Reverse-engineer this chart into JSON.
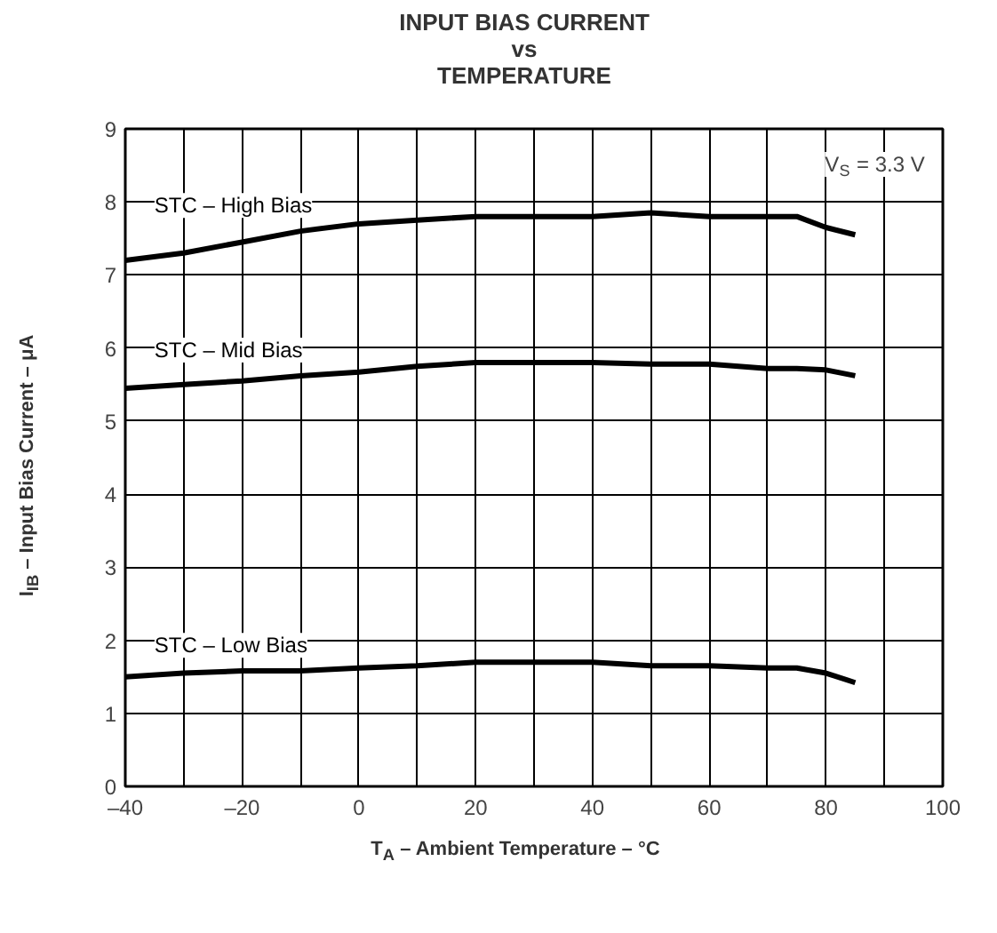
{
  "chart_data": {
    "type": "line",
    "title": "INPUT BIAS CURRENT\nvs\nTEMPERATURE",
    "xlabel": "T$_{A}$ – Ambient Temperature – °C",
    "ylabel": "I$_{IB}$ – Input Bias Current – μA",
    "annotations": [
      "V$_{S}$ = 3.3 V"
    ],
    "x": [
      -40,
      -30,
      -20,
      -10,
      0,
      10,
      20,
      30,
      40,
      50,
      60,
      70,
      75,
      80,
      85
    ],
    "series": [
      {
        "name": "STC – High Bias",
        "color": "#000000",
        "values": [
          7.2,
          7.3,
          7.45,
          7.6,
          7.7,
          7.75,
          7.8,
          7.8,
          7.8,
          7.85,
          7.8,
          7.8,
          7.8,
          7.65,
          7.55
        ]
      },
      {
        "name": "STC – Mid Bias",
        "color": "#000000",
        "values": [
          5.45,
          5.5,
          5.55,
          5.62,
          5.67,
          5.75,
          5.8,
          5.8,
          5.8,
          5.78,
          5.78,
          5.72,
          5.72,
          5.7,
          5.62
        ]
      },
      {
        "name": "STC – Low Bias",
        "color": "#000000",
        "values": [
          1.5,
          1.55,
          1.58,
          1.58,
          1.62,
          1.65,
          1.7,
          1.7,
          1.7,
          1.65,
          1.65,
          1.62,
          1.62,
          1.55,
          1.42
        ]
      }
    ],
    "xlim": [
      -40,
      100
    ],
    "ylim": [
      0,
      9
    ],
    "xticks": [
      {
        "value": -40,
        "label": "–40"
      },
      {
        "value": -30,
        "label": null
      },
      {
        "value": -20,
        "label": "–20"
      },
      {
        "value": -10,
        "label": null
      },
      0,
      {
        "value": 10,
        "label": null
      },
      20,
      {
        "value": 30,
        "label": null
      },
      40,
      {
        "value": 50,
        "label": null
      },
      60,
      {
        "value": 70,
        "label": null
      },
      80,
      {
        "value": 90,
        "label": null
      },
      100
    ],
    "yticks": [
      0,
      1,
      2,
      3,
      4,
      5,
      6,
      7,
      8,
      9
    ],
    "grid": true,
    "marker": "none",
    "line_style": "solid"
  }
}
